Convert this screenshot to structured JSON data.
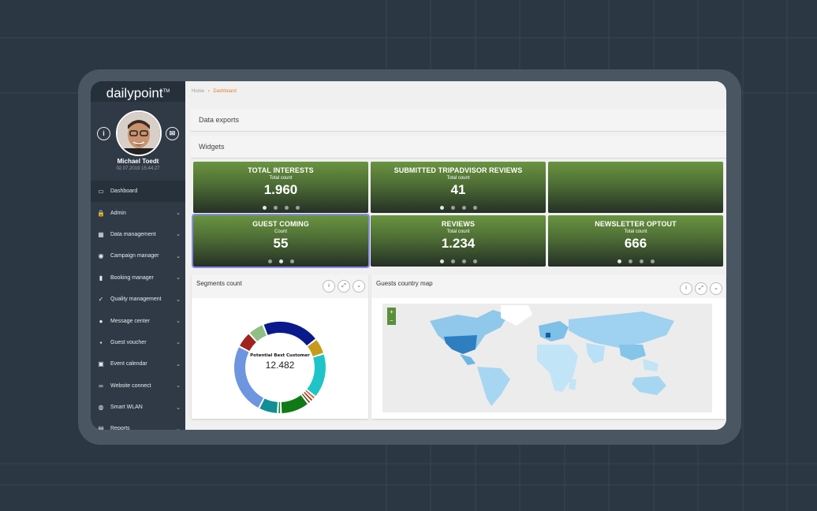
{
  "brand": {
    "logo": "dailypoint",
    "tm": "TM"
  },
  "profile": {
    "name": "Michael Toedt",
    "date": "02.07.2019 15:44:27",
    "info_btn": "i",
    "mail_btn": "✉"
  },
  "menu": [
    {
      "label": "Dashboard",
      "icon": "monitor-icon",
      "glyph": "▭",
      "chev": ""
    },
    {
      "label": "Admin",
      "icon": "lock-icon",
      "glyph": "🔒",
      "chev": "⌄"
    },
    {
      "label": "Data management",
      "icon": "table-icon",
      "glyph": "▦",
      "chev": "⌄"
    },
    {
      "label": "Campaign manager",
      "icon": "target-icon",
      "glyph": "◉",
      "chev": "⌄"
    },
    {
      "label": "Booking manager",
      "icon": "book-icon",
      "glyph": "▮",
      "chev": "⌄"
    },
    {
      "label": "Quality management",
      "icon": "check-circle-icon",
      "glyph": "✓",
      "chev": "⌄"
    },
    {
      "label": "Message center",
      "icon": "chat-icon",
      "glyph": "●",
      "chev": "⌄"
    },
    {
      "label": "Guest voucher",
      "icon": "gift-icon",
      "glyph": "▪",
      "chev": "⌄"
    },
    {
      "label": "Event calendar",
      "icon": "calendar-icon",
      "glyph": "▣",
      "chev": "⌄"
    },
    {
      "label": "Website connect",
      "icon": "link-icon",
      "glyph": "∞",
      "chev": "⌄"
    },
    {
      "label": "Smart WLAN",
      "icon": "globe-icon",
      "glyph": "◍",
      "chev": "⌄"
    },
    {
      "label": "Reports",
      "icon": "chart-icon",
      "glyph": "▤",
      "chev": "⌄"
    }
  ],
  "breadcrumb": {
    "home": "Home",
    "sep": "›",
    "current": "Dashboard"
  },
  "sections": {
    "data_exports": "Data exports",
    "widgets": "Widgets"
  },
  "tiles": [
    {
      "title": "TOTAL INTERESTS",
      "sub": "Total count",
      "value": "1.960",
      "dots": 4,
      "active": 0
    },
    {
      "title": "SUBMITTED TRIPADVISOR REVIEWS",
      "sub": "Total count",
      "value": "41",
      "dots": 4,
      "active": 0
    },
    {
      "title": "",
      "sub": "",
      "value": "",
      "dots": 0,
      "active": -1
    },
    {
      "title": "GUEST COMING",
      "sub": "Count",
      "value": "55",
      "dots": 3,
      "active": 1
    },
    {
      "title": "REVIEWS",
      "sub": "Total count",
      "value": "1.234",
      "dots": 4,
      "active": 0
    },
    {
      "title": "NEWSLETTER OPTOUT",
      "sub": "Total count",
      "value": "666",
      "dots": 4,
      "active": 0
    }
  ],
  "segments": {
    "title": "Segments count",
    "center_label": "Potential Best Customer",
    "center_value": "12.482",
    "buttons": [
      "i",
      "⤢",
      "⌄"
    ]
  },
  "map": {
    "title": "Guests country map",
    "buttons": [
      "i",
      "⤢",
      "⌄"
    ],
    "zoom_in": "+",
    "zoom_out": "−"
  },
  "colors": {
    "tile_top": "#6a9440",
    "tile_bottom": "#253025",
    "accent": "#e67e22",
    "sidebar": "#2f3a46"
  },
  "chart_data": {
    "type": "pie",
    "title": "Segments count",
    "slices": [
      {
        "value": 18,
        "color": "#0a1a8c"
      },
      {
        "value": 5,
        "color": "#c79a1b"
      },
      {
        "value": 14,
        "color": "#1ec4c8"
      },
      {
        "value": 1,
        "color": "#d9541e"
      },
      {
        "value": 1,
        "color": "#9a3b1b"
      },
      {
        "value": 1,
        "color": "#7a4a2b"
      },
      {
        "value": 9,
        "color": "#0f7a16"
      },
      {
        "value": 1,
        "color": "#1b8f2c"
      },
      {
        "value": 6,
        "color": "#128e95"
      },
      {
        "value": 22,
        "color": "#6d95e0"
      },
      {
        "value": 5,
        "color": "#a0231e"
      },
      {
        "value": 5,
        "color": "#8fbf86"
      }
    ]
  }
}
